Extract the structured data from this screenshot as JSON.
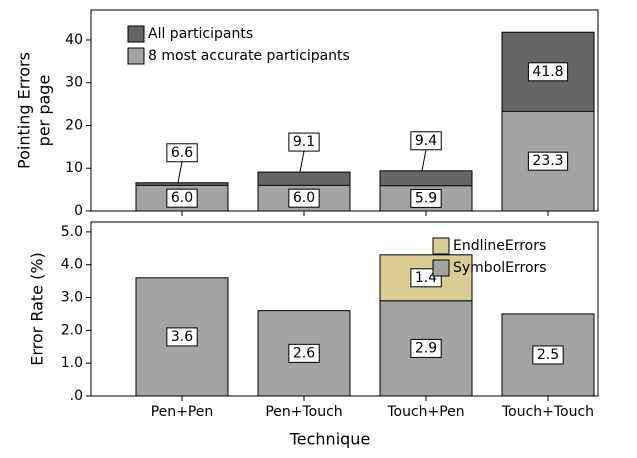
{
  "chart_data": [
    {
      "type": "bar",
      "ylabel": [
        "Pointing Errors",
        "per page"
      ],
      "ylim": [
        0,
        47
      ],
      "yticks": [
        0,
        10,
        20,
        30,
        40
      ],
      "series": [
        {
          "name": "All participants",
          "color": "#666666",
          "values": [
            6.6,
            9.1,
            9.4,
            41.8
          ],
          "value_labels": [
            "6.6",
            "9.1",
            "9.4",
            "41.8"
          ]
        },
        {
          "name": "8 most accurate participants",
          "color": "#a3a3a3",
          "values": [
            6.0,
            6.0,
            5.9,
            23.3
          ],
          "value_labels": [
            "6.0",
            "6.0",
            "5.9",
            "23.3"
          ]
        }
      ],
      "legend": "upper left"
    },
    {
      "type": "stacked_bar",
      "ylabel": "Error Rate (%)",
      "xlabel": "Technique",
      "categories": [
        "Pen+Pen",
        "Pen+Touch",
        "Touch+Pen",
        "Touch+Touch"
      ],
      "ylim": [
        0,
        5.3
      ],
      "yticks": [
        {
          "value": 0,
          "label": ".0"
        },
        {
          "value": 1,
          "label": "1.0"
        },
        {
          "value": 2,
          "label": "2.0"
        },
        {
          "value": 3,
          "label": "3.0"
        },
        {
          "value": 4,
          "label": "4.0"
        },
        {
          "value": 5,
          "label": "5.0"
        }
      ],
      "series": [
        {
          "name": "SymbolErrors",
          "color": "#a3a3a3",
          "values": [
            3.6,
            2.6,
            2.9,
            2.5
          ],
          "value_labels": [
            "3.6",
            "2.6",
            "2.9",
            "2.5"
          ]
        },
        {
          "name": "EndlineErrors",
          "color": "#d9cc94",
          "values": [
            null,
            null,
            1.4,
            null
          ],
          "value_labels": [
            null,
            null,
            "1.4",
            null
          ]
        }
      ],
      "legend": "upper right"
    }
  ]
}
